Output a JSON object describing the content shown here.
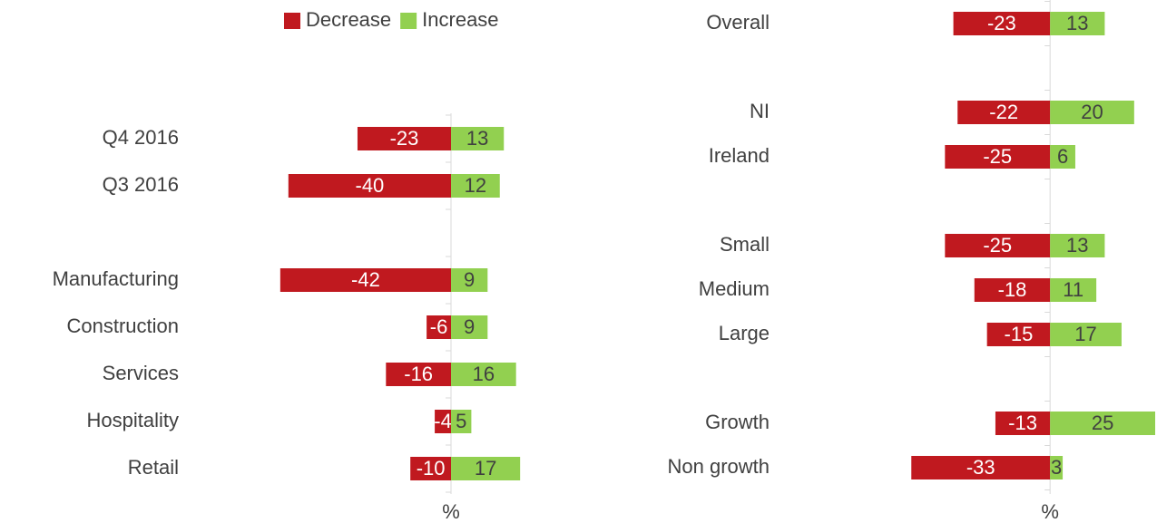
{
  "chart_data": [
    {
      "type": "bar",
      "orientation": "horizontal",
      "legend": "top",
      "xlabel": "%",
      "xlim": [
        -45,
        20
      ],
      "categories": [
        "Q4 2016",
        "Q3 2016",
        null,
        "Manufacturing",
        "Construction",
        "Services",
        "Hospitality",
        "Retail"
      ],
      "series": [
        {
          "name": "Decrease",
          "color": "#c0191f",
          "values": [
            -23,
            -40,
            null,
            -42,
            -6,
            -16,
            -4,
            -10
          ]
        },
        {
          "name": "Increase",
          "color": "#92d050",
          "values": [
            13,
            12,
            null,
            9,
            9,
            16,
            5,
            17
          ]
        }
      ]
    },
    {
      "type": "bar",
      "orientation": "horizontal",
      "xlabel": "%",
      "xlim": [
        -35,
        25
      ],
      "categories": [
        "Overall",
        null,
        "NI",
        "Ireland",
        null,
        "Small",
        "Medium",
        "Large",
        null,
        "Growth",
        "Non growth"
      ],
      "series": [
        {
          "color": "#c0191f",
          "values": [
            -23,
            null,
            -22,
            -25,
            null,
            -25,
            -18,
            -15,
            null,
            -13,
            -33
          ]
        },
        {
          "color": "#92d050",
          "values": [
            13,
            null,
            20,
            6,
            null,
            13,
            11,
            17,
            null,
            25,
            3
          ]
        }
      ]
    }
  ]
}
